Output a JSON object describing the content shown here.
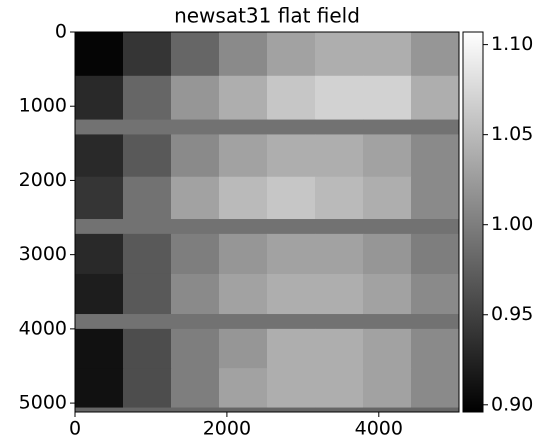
{
  "chart_data": {
    "type": "heatmap",
    "title": "newsat31 flat field",
    "colormap": "gray",
    "xbins": [
      0,
      632,
      1264,
      1896,
      2528,
      3160,
      3792,
      4424,
      5056
    ],
    "ybins": [
      0,
      590,
      1180,
      1380,
      1950,
      2520,
      2720,
      3260,
      3800,
      4000,
      4530,
      5060,
      5120
    ],
    "values": [
      [
        0.9,
        0.94,
        0.98,
        1.01,
        1.03,
        1.04,
        1.04,
        1.02
      ],
      [
        0.93,
        0.98,
        1.02,
        1.04,
        1.06,
        1.07,
        1.07,
        1.04
      ],
      [
        0.99,
        0.99,
        0.99,
        0.99,
        0.99,
        0.99,
        0.99,
        0.99
      ],
      [
        0.93,
        0.97,
        1.01,
        1.03,
        1.04,
        1.04,
        1.03,
        1.01
      ],
      [
        0.94,
        0.99,
        1.03,
        1.05,
        1.06,
        1.05,
        1.04,
        1.01
      ],
      [
        0.99,
        0.99,
        0.99,
        0.99,
        0.99,
        0.99,
        0.99,
        0.99
      ],
      [
        0.93,
        0.97,
        1.0,
        1.02,
        1.03,
        1.03,
        1.02,
        1.0
      ],
      [
        0.92,
        0.97,
        1.01,
        1.03,
        1.04,
        1.04,
        1.03,
        1.01
      ],
      [
        0.99,
        0.99,
        0.99,
        0.99,
        0.99,
        0.99,
        0.99,
        0.99
      ],
      [
        0.91,
        0.96,
        1.0,
        1.02,
        1.04,
        1.04,
        1.03,
        1.01
      ],
      [
        0.91,
        0.96,
        1.0,
        1.03,
        1.04,
        1.04,
        1.03,
        1.01
      ],
      [
        0.98,
        0.98,
        0.98,
        0.98,
        0.98,
        0.98,
        0.98,
        0.98
      ]
    ],
    "xlim": [
      0,
      5056
    ],
    "xticks": [
      0,
      2000,
      4000
    ],
    "ylim": [
      5120,
      0
    ],
    "yticks": [
      0,
      1000,
      2000,
      3000,
      4000,
      5000
    ],
    "clim": [
      0.896,
      1.107
    ],
    "cticks": [
      {
        "value": 0.9,
        "label": "0.90"
      },
      {
        "value": 0.95,
        "label": "0.95"
      },
      {
        "value": 1.0,
        "label": "1.00"
      },
      {
        "value": 1.05,
        "label": "1.05"
      },
      {
        "value": 1.1,
        "label": "1.10"
      }
    ]
  }
}
